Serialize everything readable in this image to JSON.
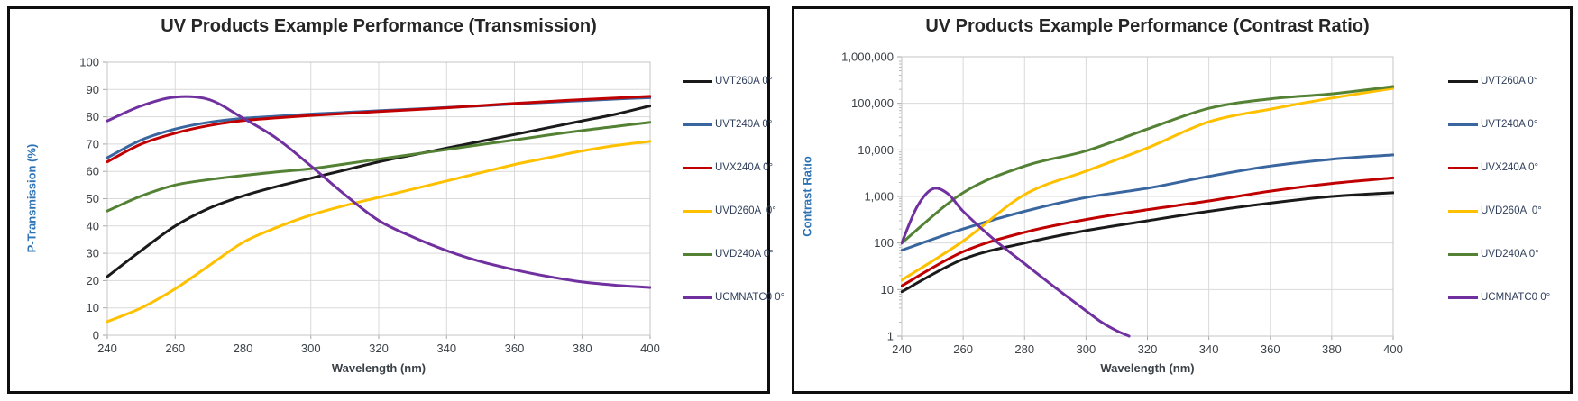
{
  "page": {
    "background": "#ffffff",
    "frame_color": "#0e0e0e"
  },
  "chart_data": [
    {
      "type": "line",
      "title": "UV Products Example Performance (Transmission)",
      "xlabel": "Wavelength (nm)",
      "ylabel": "P-Transmission (%)",
      "legend_position": "right",
      "grid": true,
      "x_axis": {
        "min": 240,
        "max": 400,
        "ticks": [
          240,
          260,
          280,
          300,
          320,
          340,
          360,
          380,
          400
        ]
      },
      "y_axis": {
        "type": "linear",
        "min": 0,
        "max": 100,
        "tick_values": [
          0,
          10,
          20,
          30,
          40,
          50,
          60,
          70,
          80,
          90,
          100
        ],
        "tick_labels": [
          "0",
          "10",
          "20",
          "30",
          "40",
          "50",
          "60",
          "70",
          "80",
          "90",
          "100"
        ]
      },
      "x": [
        240,
        250,
        260,
        270,
        280,
        290,
        300,
        310,
        320,
        330,
        340,
        350,
        360,
        370,
        380,
        390,
        400
      ],
      "series": [
        {
          "name": "UVT260A 0°",
          "color": "#1a1a1a",
          "values": [
            21.5,
            31,
            40,
            46.5,
            51,
            54.5,
            57.5,
            60.5,
            63.5,
            66,
            68.5,
            71,
            73.5,
            76,
            78.5,
            81,
            84
          ]
        },
        {
          "name": "UVT240A 0°",
          "color": "#3a66a0",
          "values": [
            65,
            71.5,
            75.5,
            78,
            79.4,
            80.2,
            81,
            81.6,
            82.2,
            82.8,
            83.4,
            84,
            84.7,
            85.3,
            85.9,
            86.5,
            87
          ]
        },
        {
          "name": "UVX240A 0°",
          "color": "#c00000",
          "values": [
            63.5,
            70,
            74,
            76.8,
            78.6,
            79.6,
            80.5,
            81.2,
            81.9,
            82.6,
            83.3,
            84.1,
            84.9,
            85.6,
            86.3,
            86.9,
            87.5
          ]
        },
        {
          "name": "UVD260A  0°",
          "color": "#ffc000",
          "values": [
            5,
            10,
            17,
            25.5,
            34,
            39.5,
            44,
            47.5,
            50.5,
            53.5,
            56.5,
            59.5,
            62.5,
            65,
            67.5,
            69.5,
            71
          ]
        },
        {
          "name": "UVD240A 0°",
          "color": "#548235",
          "values": [
            45.5,
            51,
            55,
            57,
            58.5,
            59.8,
            61,
            62.7,
            64.5,
            66.2,
            68,
            69.8,
            71.5,
            73.3,
            75,
            76.5,
            78
          ]
        },
        {
          "name": "UCMNATC0 0°",
          "color": "#7030a0",
          "values": [
            78.5,
            84,
            87.2,
            86.3,
            79.5,
            72,
            62,
            51.5,
            42,
            36,
            31,
            27,
            24,
            21.5,
            19.5,
            18.3,
            17.5
          ]
        }
      ]
    },
    {
      "type": "line",
      "title": "UV Products Example Performance (Contrast Ratio)",
      "xlabel": "Wavelength (nm)",
      "ylabel": "Contrast Ratio",
      "legend_position": "right",
      "grid": true,
      "x_axis": {
        "min": 240,
        "max": 400,
        "ticks": [
          240,
          260,
          280,
          300,
          320,
          340,
          360,
          380,
          400
        ]
      },
      "y_axis": {
        "type": "log",
        "min": 1,
        "max": 1000000,
        "tick_values": [
          1,
          10,
          100,
          1000,
          10000,
          100000,
          1000000
        ],
        "tick_labels": [
          "1",
          "10",
          "100",
          "1,000",
          "10,000",
          "100,000",
          "1,000,000"
        ]
      },
      "x": [
        240,
        260,
        280,
        300,
        320,
        340,
        360,
        380,
        400
      ],
      "series": [
        {
          "name": "UVT260A 0°",
          "color": "#1a1a1a",
          "values": [
            9,
            45,
            100,
            185,
            300,
            480,
            720,
            1000,
            1200
          ]
        },
        {
          "name": "UVT240A 0°",
          "color": "#3a66a0",
          "values": [
            70,
            200,
            480,
            950,
            1500,
            2700,
            4500,
            6300,
            7800
          ]
        },
        {
          "name": "UVX240A 0°",
          "color": "#c00000",
          "values": [
            12,
            65,
            170,
            320,
            520,
            800,
            1300,
            1900,
            2500
          ]
        },
        {
          "name": "UVD260A  0°",
          "color": "#ffc000",
          "values": [
            16,
            110,
            1100,
            3500,
            11000,
            40000,
            75000,
            130000,
            210000
          ]
        },
        {
          "name": "UVD240A 0°",
          "color": "#548235",
          "values": [
            100,
            1200,
            4500,
            9500,
            28000,
            78000,
            125000,
            160000,
            230000
          ]
        },
        {
          "name": "UCMNATC0 0°",
          "color": "#7030a0",
          "x": [
            240,
            245,
            250,
            255,
            260,
            270,
            280,
            290,
            300,
            305,
            310,
            314
          ],
          "values": [
            100,
            600,
            1450,
            1150,
            480,
            120,
            36,
            11,
            3.5,
            2,
            1.3,
            1
          ]
        }
      ]
    }
  ]
}
